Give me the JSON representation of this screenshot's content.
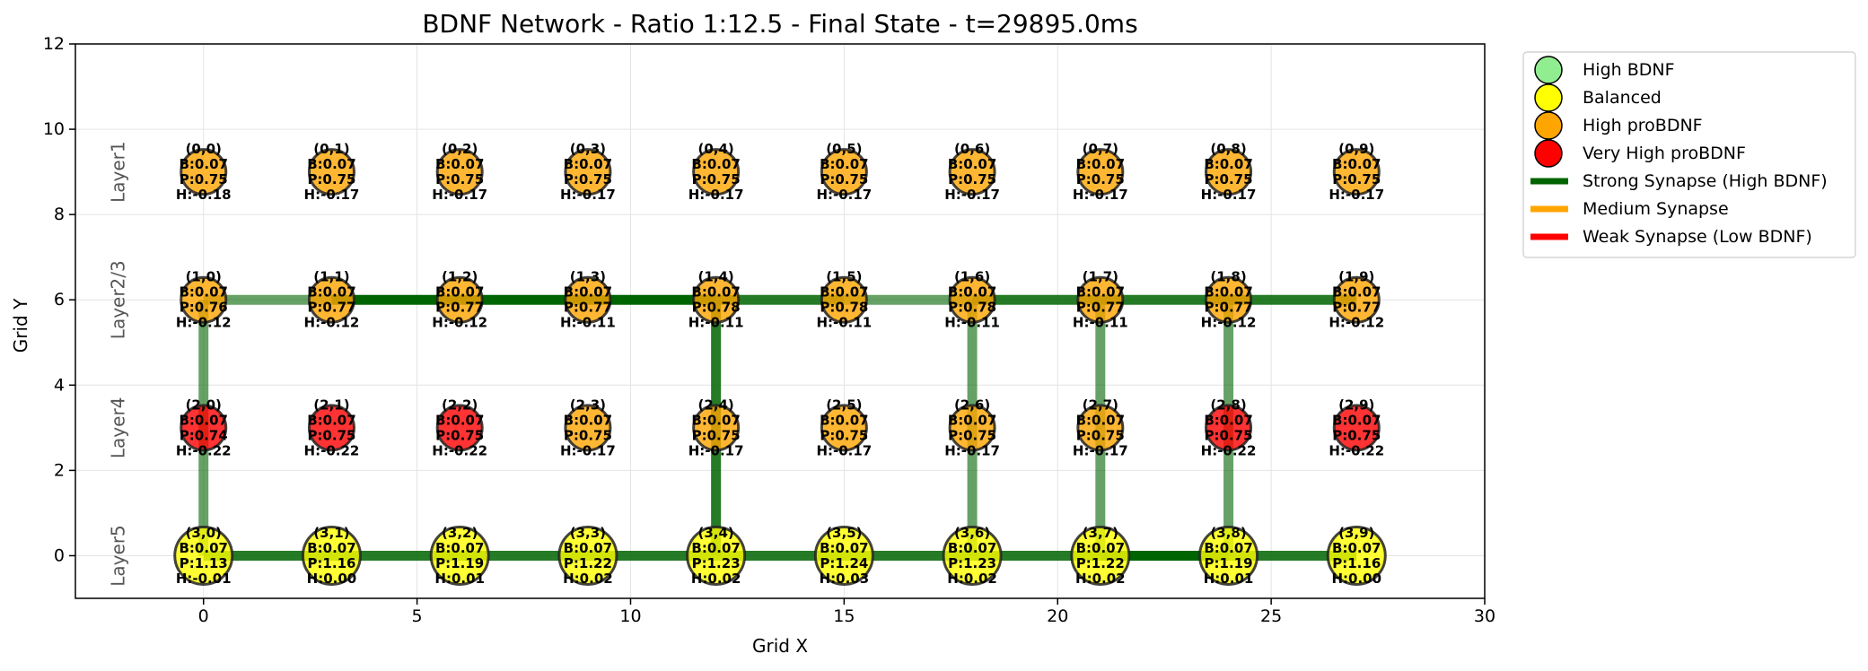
{
  "chart_data": {
    "type": "scatter",
    "title": "BDNF Network - Ratio 1:12.5 - Final State - t=29895.0ms",
    "xlabel": "Grid X",
    "ylabel": "Grid Y",
    "xlim": [
      -3,
      30
    ],
    "ylim": [
      -1,
      12
    ],
    "xticks": [
      0,
      5,
      10,
      15,
      20,
      25,
      30
    ],
    "yticks": [
      0,
      2,
      4,
      6,
      8,
      10,
      12
    ],
    "grid": true,
    "legend_position": "outside-top-right",
    "colors": {
      "high_bdnf": "#90ee90",
      "balanced": "#ffff00",
      "high_probdnf": "#ffa500",
      "very_high_probdnf": "#ff0000",
      "strong_synapse": "#006400",
      "medium_synapse": "#ffa500",
      "weak_synapse": "#ff0000"
    },
    "legend": [
      {
        "label": "High BDNF",
        "kind": "marker",
        "color": "#90ee90"
      },
      {
        "label": "Balanced",
        "kind": "marker",
        "color": "#ffff00"
      },
      {
        "label": "High proBDNF",
        "kind": "marker",
        "color": "#ffa500"
      },
      {
        "label": "Very High proBDNF",
        "kind": "marker",
        "color": "#ff0000"
      },
      {
        "label": "Strong Synapse (High BDNF)",
        "kind": "line",
        "color": "#006400"
      },
      {
        "label": "Medium Synapse",
        "kind": "line",
        "color": "#ffa500"
      },
      {
        "label": "Weak Synapse (Low BDNF)",
        "kind": "line",
        "color": "#ff0000"
      }
    ],
    "layers": [
      {
        "label": "Layer1",
        "y": 9
      },
      {
        "label": "Layer2/3",
        "y": 6
      },
      {
        "label": "Layer4",
        "y": 3
      },
      {
        "label": "Layer5",
        "y": 0
      }
    ],
    "neurons": [
      {
        "id": "(0,0)",
        "x": 0,
        "y": 9,
        "state": "high_probdnf",
        "B": "B:0.07",
        "P": "P:0.75",
        "H": "H:-0.18"
      },
      {
        "id": "(0,1)",
        "x": 3,
        "y": 9,
        "state": "high_probdnf",
        "B": "B:0.07",
        "P": "P:0.75",
        "H": "H:-0.17"
      },
      {
        "id": "(0,2)",
        "x": 6,
        "y": 9,
        "state": "high_probdnf",
        "B": "B:0.07",
        "P": "P:0.75",
        "H": "H:-0.17"
      },
      {
        "id": "(0,3)",
        "x": 9,
        "y": 9,
        "state": "high_probdnf",
        "B": "B:0.07",
        "P": "P:0.75",
        "H": "H:-0.17"
      },
      {
        "id": "(0,4)",
        "x": 12,
        "y": 9,
        "state": "high_probdnf",
        "B": "B:0.07",
        "P": "P:0.75",
        "H": "H:-0.17"
      },
      {
        "id": "(0,5)",
        "x": 15,
        "y": 9,
        "state": "high_probdnf",
        "B": "B:0.07",
        "P": "P:0.75",
        "H": "H:-0.17"
      },
      {
        "id": "(0,6)",
        "x": 18,
        "y": 9,
        "state": "high_probdnf",
        "B": "B:0.07",
        "P": "P:0.75",
        "H": "H:-0.17"
      },
      {
        "id": "(0,7)",
        "x": 21,
        "y": 9,
        "state": "high_probdnf",
        "B": "B:0.07",
        "P": "P:0.75",
        "H": "H:-0.17"
      },
      {
        "id": "(0,8)",
        "x": 24,
        "y": 9,
        "state": "high_probdnf",
        "B": "B:0.07",
        "P": "P:0.75",
        "H": "H:-0.17"
      },
      {
        "id": "(0,9)",
        "x": 27,
        "y": 9,
        "state": "high_probdnf",
        "B": "B:0.07",
        "P": "P:0.75",
        "H": "H:-0.17"
      },
      {
        "id": "(1,0)",
        "x": 0,
        "y": 6,
        "state": "high_probdnf",
        "B": "B:0.07",
        "P": "P:0.76",
        "H": "H:-0.12"
      },
      {
        "id": "(1,1)",
        "x": 3,
        "y": 6,
        "state": "high_probdnf",
        "B": "B:0.07",
        "P": "P:0.77",
        "H": "H:-0.12"
      },
      {
        "id": "(1,2)",
        "x": 6,
        "y": 6,
        "state": "high_probdnf",
        "B": "B:0.07",
        "P": "P:0.77",
        "H": "H:-0.12"
      },
      {
        "id": "(1,3)",
        "x": 9,
        "y": 6,
        "state": "high_probdnf",
        "B": "B:0.07",
        "P": "P:0.77",
        "H": "H:-0.11"
      },
      {
        "id": "(1,4)",
        "x": 12,
        "y": 6,
        "state": "high_probdnf",
        "B": "B:0.07",
        "P": "P:0.78",
        "H": "H:-0.11"
      },
      {
        "id": "(1,5)",
        "x": 15,
        "y": 6,
        "state": "high_probdnf",
        "B": "B:0.07",
        "P": "P:0.78",
        "H": "H:-0.11"
      },
      {
        "id": "(1,6)",
        "x": 18,
        "y": 6,
        "state": "high_probdnf",
        "B": "B:0.07",
        "P": "P:0.78",
        "H": "H:-0.11"
      },
      {
        "id": "(1,7)",
        "x": 21,
        "y": 6,
        "state": "high_probdnf",
        "B": "B:0.07",
        "P": "P:0.77",
        "H": "H:-0.11"
      },
      {
        "id": "(1,8)",
        "x": 24,
        "y": 6,
        "state": "high_probdnf",
        "B": "B:0.07",
        "P": "P:0.77",
        "H": "H:-0.12"
      },
      {
        "id": "(1,9)",
        "x": 27,
        "y": 6,
        "state": "high_probdnf",
        "B": "B:0.07",
        "P": "P:0.77",
        "H": "H:-0.12"
      },
      {
        "id": "(2,0)",
        "x": 0,
        "y": 3,
        "state": "very_high_probdnf",
        "B": "B:0.07",
        "P": "P:0.74",
        "H": "H:-0.22"
      },
      {
        "id": "(2,1)",
        "x": 3,
        "y": 3,
        "state": "very_high_probdnf",
        "B": "B:0.07",
        "P": "P:0.75",
        "H": "H:-0.22"
      },
      {
        "id": "(2,2)",
        "x": 6,
        "y": 3,
        "state": "very_high_probdnf",
        "B": "B:0.07",
        "P": "P:0.75",
        "H": "H:-0.22"
      },
      {
        "id": "(2,3)",
        "x": 9,
        "y": 3,
        "state": "high_probdnf",
        "B": "B:0.07",
        "P": "P:0.75",
        "H": "H:-0.17"
      },
      {
        "id": "(2,4)",
        "x": 12,
        "y": 3,
        "state": "high_probdnf",
        "B": "B:0.07",
        "P": "P:0.75",
        "H": "H:-0.17"
      },
      {
        "id": "(2,5)",
        "x": 15,
        "y": 3,
        "state": "high_probdnf",
        "B": "B:0.07",
        "P": "P:0.75",
        "H": "H:-0.17"
      },
      {
        "id": "(2,6)",
        "x": 18,
        "y": 3,
        "state": "high_probdnf",
        "B": "B:0.07",
        "P": "P:0.75",
        "H": "H:-0.17"
      },
      {
        "id": "(2,7)",
        "x": 21,
        "y": 3,
        "state": "high_probdnf",
        "B": "B:0.07",
        "P": "P:0.75",
        "H": "H:-0.17"
      },
      {
        "id": "(2,8)",
        "x": 24,
        "y": 3,
        "state": "very_high_probdnf",
        "B": "B:0.07",
        "P": "P:0.75",
        "H": "H:-0.22"
      },
      {
        "id": "(2,9)",
        "x": 27,
        "y": 3,
        "state": "very_high_probdnf",
        "B": "B:0.07",
        "P": "P:0.75",
        "H": "H:-0.22"
      },
      {
        "id": "(3,0)",
        "x": 0,
        "y": 0,
        "state": "balanced",
        "B": "B:0.07",
        "P": "P:1.13",
        "H": "H:-0.01"
      },
      {
        "id": "(3,1)",
        "x": 3,
        "y": 0,
        "state": "balanced",
        "B": "B:0.07",
        "P": "P:1.16",
        "H": "H:0.00"
      },
      {
        "id": "(3,2)",
        "x": 6,
        "y": 0,
        "state": "balanced",
        "B": "B:0.07",
        "P": "P:1.19",
        "H": "H:0.01"
      },
      {
        "id": "(3,3)",
        "x": 9,
        "y": 0,
        "state": "balanced",
        "B": "B:0.07",
        "P": "P:1.22",
        "H": "H:0.02"
      },
      {
        "id": "(3,4)",
        "x": 12,
        "y": 0,
        "state": "balanced",
        "B": "B:0.07",
        "P": "P:1.23",
        "H": "H:0.02"
      },
      {
        "id": "(3,5)",
        "x": 15,
        "y": 0,
        "state": "balanced",
        "B": "B:0.07",
        "P": "P:1.24",
        "H": "H:0.03"
      },
      {
        "id": "(3,6)",
        "x": 18,
        "y": 0,
        "state": "balanced",
        "B": "B:0.07",
        "P": "P:1.23",
        "H": "H:0.02"
      },
      {
        "id": "(3,7)",
        "x": 21,
        "y": 0,
        "state": "balanced",
        "B": "B:0.07",
        "P": "P:1.22",
        "H": "H:0.02"
      },
      {
        "id": "(3,8)",
        "x": 24,
        "y": 0,
        "state": "balanced",
        "B": "B:0.07",
        "P": "P:1.19",
        "H": "H:0.01"
      },
      {
        "id": "(3,9)",
        "x": 27,
        "y": 0,
        "state": "balanced",
        "B": "B:0.07",
        "P": "P:1.16",
        "H": "H:0.00"
      }
    ],
    "synapses": [
      {
        "x1": 0,
        "y1": 6,
        "x2": 3,
        "y2": 6,
        "type": "strong",
        "opacity": 0.6
      },
      {
        "x1": 3,
        "y1": 6,
        "x2": 6,
        "y2": 6,
        "type": "strong",
        "opacity": 1.0
      },
      {
        "x1": 6,
        "y1": 6,
        "x2": 9,
        "y2": 6,
        "type": "strong",
        "opacity": 1.0
      },
      {
        "x1": 9,
        "y1": 6,
        "x2": 12,
        "y2": 6,
        "type": "strong",
        "opacity": 1.0
      },
      {
        "x1": 12,
        "y1": 6,
        "x2": 15,
        "y2": 6,
        "type": "strong",
        "opacity": 0.85
      },
      {
        "x1": 15,
        "y1": 6,
        "x2": 18,
        "y2": 6,
        "type": "strong",
        "opacity": 0.6
      },
      {
        "x1": 18,
        "y1": 6,
        "x2": 21,
        "y2": 6,
        "type": "strong",
        "opacity": 0.85
      },
      {
        "x1": 21,
        "y1": 6,
        "x2": 24,
        "y2": 6,
        "type": "strong",
        "opacity": 0.85
      },
      {
        "x1": 24,
        "y1": 6,
        "x2": 27,
        "y2": 6,
        "type": "strong",
        "opacity": 0.85
      },
      {
        "x1": 0,
        "y1": 0,
        "x2": 3,
        "y2": 0,
        "type": "strong",
        "opacity": 0.85
      },
      {
        "x1": 3,
        "y1": 0,
        "x2": 6,
        "y2": 0,
        "type": "strong",
        "opacity": 0.85
      },
      {
        "x1": 6,
        "y1": 0,
        "x2": 9,
        "y2": 0,
        "type": "strong",
        "opacity": 0.85
      },
      {
        "x1": 9,
        "y1": 0,
        "x2": 12,
        "y2": 0,
        "type": "strong",
        "opacity": 0.85
      },
      {
        "x1": 12,
        "y1": 0,
        "x2": 15,
        "y2": 0,
        "type": "strong",
        "opacity": 0.85
      },
      {
        "x1": 15,
        "y1": 0,
        "x2": 18,
        "y2": 0,
        "type": "strong",
        "opacity": 0.85
      },
      {
        "x1": 18,
        "y1": 0,
        "x2": 21,
        "y2": 0,
        "type": "strong",
        "opacity": 0.85
      },
      {
        "x1": 21,
        "y1": 0,
        "x2": 24,
        "y2": 0,
        "type": "strong",
        "opacity": 1.0
      },
      {
        "x1": 24,
        "y1": 0,
        "x2": 27,
        "y2": 0,
        "type": "strong",
        "opacity": 0.85
      },
      {
        "x1": 0,
        "y1": 6,
        "x2": 0,
        "y2": 0,
        "type": "strong",
        "opacity": 0.6
      },
      {
        "x1": 12,
        "y1": 6,
        "x2": 12,
        "y2": 0,
        "type": "strong",
        "opacity": 0.85
      },
      {
        "x1": 18,
        "y1": 6,
        "x2": 18,
        "y2": 0,
        "type": "strong",
        "opacity": 0.6
      },
      {
        "x1": 21,
        "y1": 6,
        "x2": 21,
        "y2": 0,
        "type": "strong",
        "opacity": 0.6
      },
      {
        "x1": 24,
        "y1": 6,
        "x2": 24,
        "y2": 0,
        "type": "strong",
        "opacity": 0.6
      }
    ]
  }
}
